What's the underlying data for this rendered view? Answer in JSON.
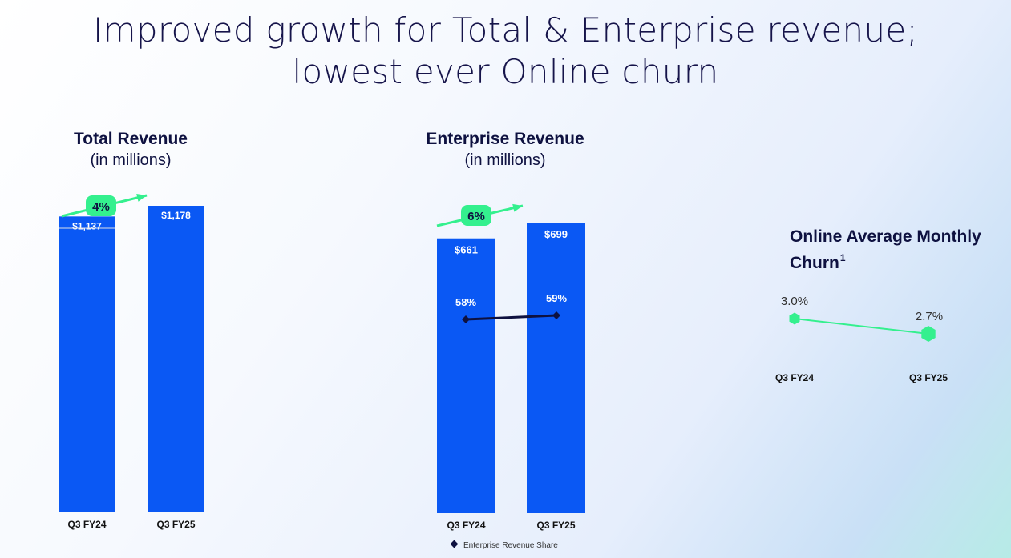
{
  "title": {
    "line1": "Improved growth for Total & Enterprise revenue;",
    "line2": "lowest ever Online churn"
  },
  "colors": {
    "bar": "#0a58f4",
    "accent": "#34f08e",
    "dark": "#0e1140"
  },
  "chart_data": [
    {
      "type": "bar",
      "title": "Total Revenue",
      "subtitle": "(in millions)",
      "categories": [
        "Q3 FY24",
        "Q3 FY25"
      ],
      "values": [
        1137,
        1178
      ],
      "value_labels": [
        "$1,137",
        "$1,178"
      ],
      "growth_label": "4%"
    },
    {
      "type": "bar",
      "title": "Enterprise Revenue",
      "subtitle": "(in millions)",
      "categories": [
        "Q3 FY24",
        "Q3 FY25"
      ],
      "values": [
        661,
        699
      ],
      "value_labels": [
        "$661",
        "$699"
      ],
      "growth_label": "6%",
      "overlay_line": {
        "name": "Enterprise Revenue Share",
        "values": [
          58,
          59
        ],
        "labels": [
          "58%",
          "59%"
        ]
      },
      "legend": [
        "Enterprise Revenue Share"
      ]
    },
    {
      "type": "line",
      "title": "Online Average Monthly Churn",
      "footnote": "1",
      "categories": [
        "Q3 FY24",
        "Q3 FY25"
      ],
      "values": [
        3.0,
        2.7
      ],
      "labels": [
        "3.0%",
        "2.7%"
      ]
    }
  ]
}
